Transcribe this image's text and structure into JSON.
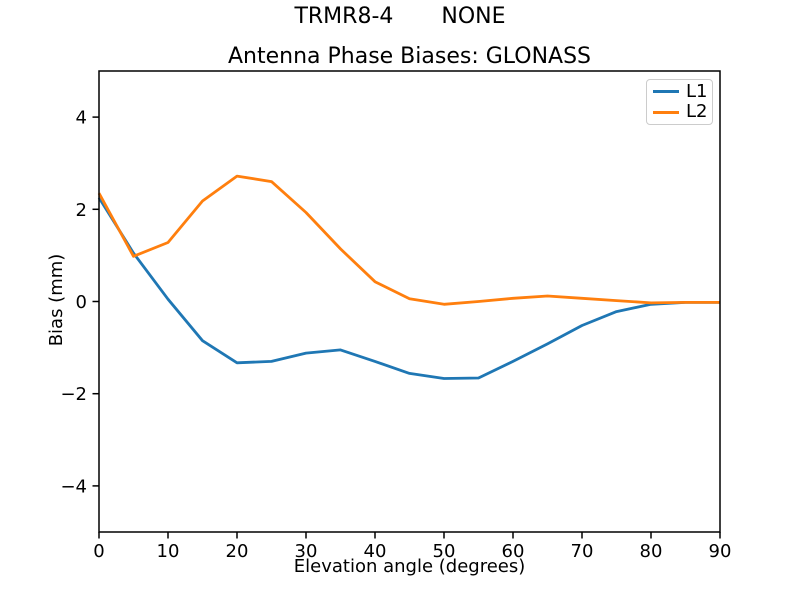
{
  "header": {
    "suptitle_left": "TRMR8-4",
    "suptitle_right": "NONE",
    "title": "Antenna Phase Biases: GLONASS"
  },
  "chart_data": {
    "type": "line",
    "title": "Antenna Phase Biases: GLONASS",
    "xlabel": "Elevation angle (degrees)",
    "ylabel": "Bias (mm)",
    "xlim": [
      0,
      90
    ],
    "ylim": [
      -5,
      5
    ],
    "x_ticks": [
      0,
      10,
      20,
      30,
      40,
      50,
      60,
      70,
      80,
      90
    ],
    "y_ticks": [
      -4,
      -2,
      0,
      2,
      4
    ],
    "grid": false,
    "legend_position": "upper right",
    "background": "#ffffff",
    "axis_color": "#000000",
    "x": [
      0,
      5,
      10,
      15,
      20,
      25,
      30,
      35,
      40,
      45,
      50,
      55,
      60,
      65,
      70,
      75,
      80,
      85,
      90
    ],
    "series": [
      {
        "name": "L1",
        "color": "#1f77b4",
        "values": [
          2.25,
          1.05,
          0.05,
          -0.85,
          -1.33,
          -1.3,
          -1.12,
          -1.05,
          -1.3,
          -1.56,
          -1.67,
          -1.66,
          -1.3,
          -0.92,
          -0.52,
          -0.22,
          -0.06,
          -0.02,
          -0.02
        ]
      },
      {
        "name": "L2",
        "color": "#ff7f0e",
        "values": [
          2.35,
          0.98,
          1.28,
          2.18,
          2.72,
          2.6,
          1.93,
          1.14,
          0.43,
          0.06,
          -0.06,
          0.0,
          0.07,
          0.12,
          0.07,
          0.02,
          -0.03,
          -0.02,
          -0.02
        ]
      }
    ]
  }
}
